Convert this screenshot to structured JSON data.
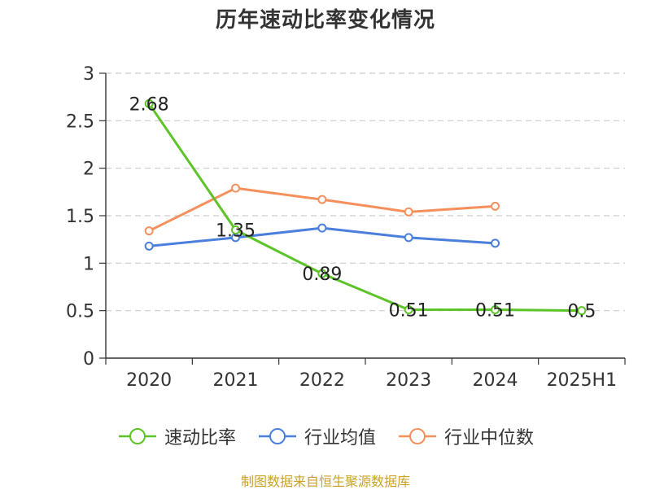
{
  "chart_data": {
    "type": "line",
    "title": "历年速动比率变化情况",
    "categories": [
      "2020",
      "2021",
      "2022",
      "2023",
      "2024",
      "2025H1"
    ],
    "ylim": [
      0,
      3
    ],
    "yticks": [
      "0",
      "0.5",
      "1",
      "1.5",
      "2",
      "2.5",
      "3"
    ],
    "grid": true,
    "legend_position": "bottom",
    "series": [
      {
        "name": "速动比率",
        "color": "#5cc328",
        "values": [
          2.68,
          1.35,
          0.89,
          0.51,
          0.51,
          0.5
        ],
        "labels": [
          "2.68",
          "1.35",
          "0.89",
          "0.51",
          "0.51",
          "0.5"
        ]
      },
      {
        "name": "行业均值",
        "color": "#4a7fdc",
        "values": [
          1.18,
          1.27,
          1.37,
          1.27,
          1.21,
          null
        ]
      },
      {
        "name": "行业中位数",
        "color": "#f5905c",
        "values": [
          1.34,
          1.79,
          1.67,
          1.54,
          1.6,
          null
        ]
      }
    ]
  },
  "source": "制图数据来自恒生聚源数据库"
}
